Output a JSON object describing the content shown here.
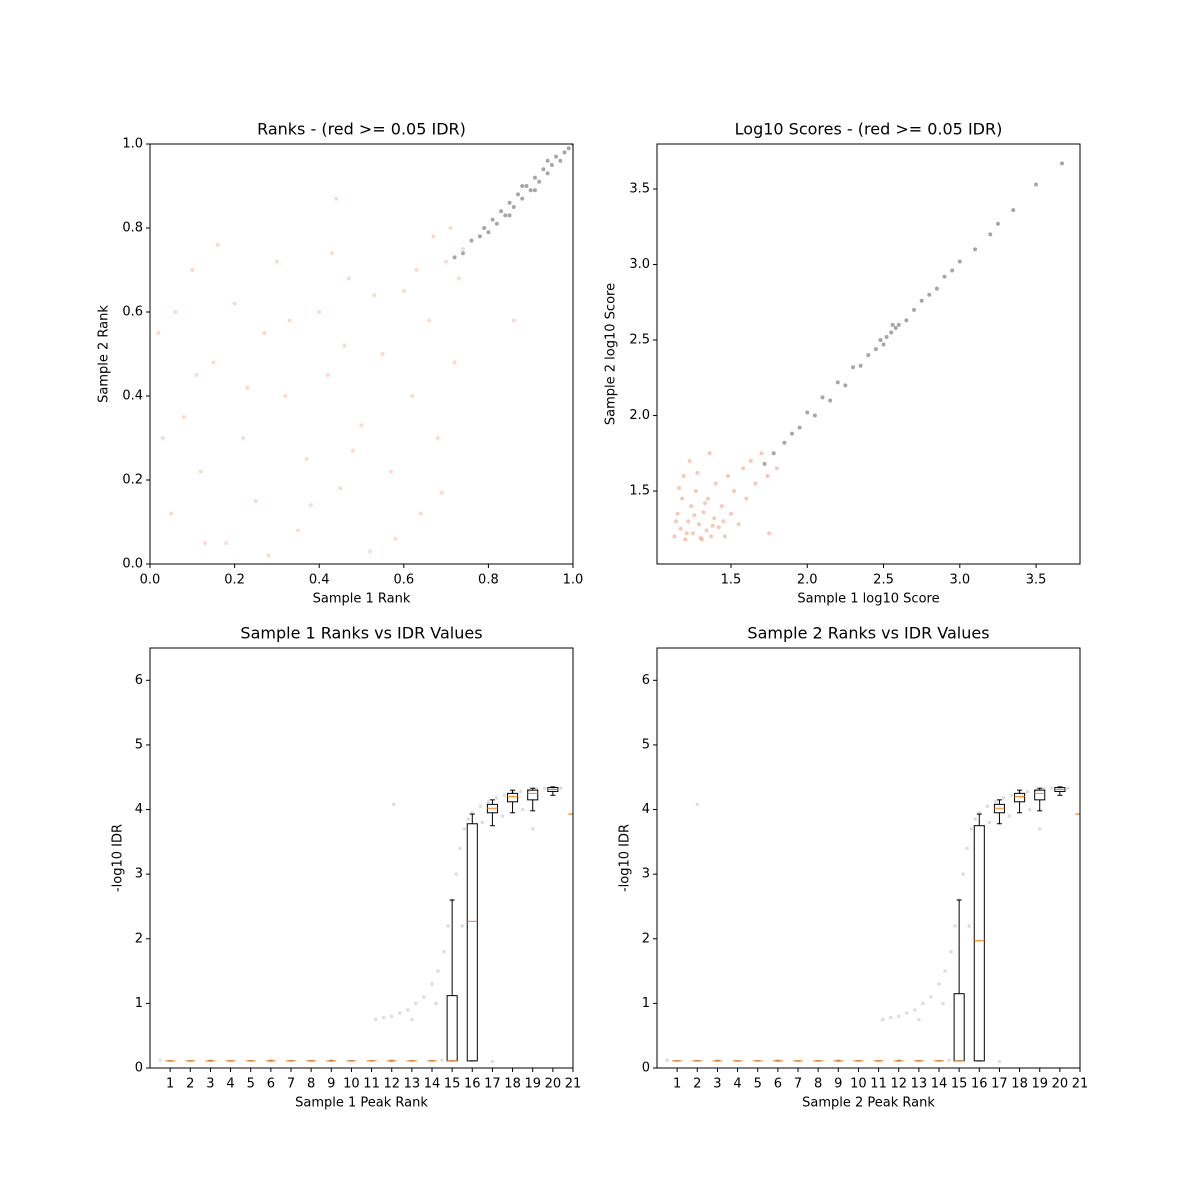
{
  "chart_data": [
    {
      "type": "scatter",
      "title": "Ranks - (red >= 0.05 IDR)",
      "xlabel": "Sample 1 Rank",
      "ylabel": "Sample 2 Rank",
      "xlim": [
        0,
        1
      ],
      "ylim": [
        0,
        1
      ],
      "xticks": [
        {
          "value": 0,
          "label": "0.0"
        },
        0.2,
        0.4,
        0.6,
        0.8,
        {
          "value": 1,
          "label": "1.0"
        }
      ],
      "yticks": [
        {
          "value": 0,
          "label": "0.0"
        },
        0.2,
        0.4,
        0.6,
        0.8,
        {
          "value": 1,
          "label": "1.0"
        }
      ],
      "series": [
        {
          "color": "#f4845f",
          "alpha": 0.3,
          "x": [
            0.02,
            0.05,
            0.08,
            0.1,
            0.12,
            0.15,
            0.18,
            0.2,
            0.22,
            0.25,
            0.27,
            0.3,
            0.32,
            0.35,
            0.37,
            0.4,
            0.42,
            0.45,
            0.47,
            0.5,
            0.52,
            0.55,
            0.57,
            0.6,
            0.62,
            0.64,
            0.66,
            0.68,
            0.7,
            0.72,
            0.74,
            0.03,
            0.06,
            0.13,
            0.16,
            0.23,
            0.28,
            0.33,
            0.38,
            0.43,
            0.48,
            0.53,
            0.58,
            0.63,
            0.67,
            0.71,
            0.73,
            0.69,
            0.11,
            0.46,
            0.86,
            0.44
          ],
          "y": [
            0.55,
            0.12,
            0.35,
            0.7,
            0.22,
            0.48,
            0.05,
            0.62,
            0.3,
            0.15,
            0.55,
            0.72,
            0.4,
            0.08,
            0.25,
            0.6,
            0.45,
            0.18,
            0.68,
            0.33,
            0.03,
            0.5,
            0.22,
            0.65,
            0.4,
            0.12,
            0.58,
            0.3,
            0.72,
            0.48,
            0.75,
            0.3,
            0.6,
            0.05,
            0.76,
            0.42,
            0.02,
            0.58,
            0.14,
            0.74,
            0.27,
            0.64,
            0.06,
            0.7,
            0.78,
            0.8,
            0.68,
            0.17,
            0.45,
            0.52,
            0.58,
            0.87
          ]
        },
        {
          "color": "#000000",
          "alpha": 0.35,
          "x": [
            0.72,
            0.74,
            0.76,
            0.78,
            0.79,
            0.8,
            0.81,
            0.82,
            0.83,
            0.84,
            0.85,
            0.86,
            0.87,
            0.88,
            0.89,
            0.9,
            0.91,
            0.92,
            0.93,
            0.94,
            0.95,
            0.96,
            0.97,
            0.98,
            0.99,
            1.0,
            0.85,
            0.88,
            0.91,
            0.94
          ],
          "y": [
            0.73,
            0.74,
            0.77,
            0.78,
            0.8,
            0.79,
            0.82,
            0.81,
            0.84,
            0.83,
            0.86,
            0.85,
            0.88,
            0.87,
            0.9,
            0.89,
            0.92,
            0.91,
            0.94,
            0.93,
            0.95,
            0.97,
            0.96,
            0.98,
            0.99,
            1.0,
            0.83,
            0.9,
            0.89,
            0.96
          ]
        }
      ]
    },
    {
      "type": "scatter",
      "title": "Log10 Scores - (red >= 0.05 IDR)",
      "xlabel": "Sample 1 log10 Score",
      "ylabel": "Sample 2 log10 Score",
      "xlim": [
        1.015,
        3.788
      ],
      "ylim": [
        1.017,
        3.798
      ],
      "xticks": [
        1.5,
        {
          "value": 2,
          "label": "2.0"
        },
        2.5,
        {
          "value": 3,
          "label": "3.0"
        },
        3.5
      ],
      "yticks": [
        1.5,
        {
          "value": 2,
          "label": "2.0"
        },
        2.5,
        {
          "value": 3,
          "label": "3.0"
        },
        3.5
      ],
      "series": [
        {
          "color": "#f4845f",
          "alpha": 0.45,
          "x": [
            1.13,
            1.15,
            1.17,
            1.18,
            1.2,
            1.22,
            1.24,
            1.25,
            1.27,
            1.29,
            1.3,
            1.32,
            1.34,
            1.35,
            1.37,
            1.39,
            1.4,
            1.42,
            1.44,
            1.46,
            1.48,
            1.5,
            1.52,
            1.55,
            1.58,
            1.6,
            1.63,
            1.66,
            1.7,
            1.74,
            1.19,
            1.23,
            1.16,
            1.36,
            1.45,
            1.8,
            1.75,
            1.14,
            1.21,
            1.26,
            1.31,
            1.33,
            1.38,
            1.28
          ],
          "y": [
            1.2,
            1.35,
            1.25,
            1.45,
            1.18,
            1.3,
            1.4,
            1.22,
            1.5,
            1.28,
            1.19,
            1.36,
            1.24,
            1.45,
            1.2,
            1.32,
            1.55,
            1.26,
            1.4,
            1.2,
            1.6,
            1.35,
            1.5,
            1.28,
            1.65,
            1.45,
            1.7,
            1.55,
            1.75,
            1.6,
            1.6,
            1.7,
            1.52,
            1.75,
            1.3,
            1.65,
            1.22,
            1.3,
            1.22,
            1.34,
            1.18,
            1.42,
            1.27,
            1.62
          ]
        },
        {
          "color": "#000000",
          "alpha": 0.35,
          "x": [
            1.72,
            1.78,
            1.85,
            1.9,
            1.95,
            2.0,
            2.05,
            2.1,
            2.15,
            2.2,
            2.25,
            2.3,
            2.35,
            2.4,
            2.45,
            2.48,
            2.52,
            2.55,
            2.58,
            2.6,
            2.65,
            2.7,
            2.75,
            2.8,
            2.85,
            2.9,
            2.95,
            3.0,
            3.1,
            3.2,
            3.25,
            3.35,
            3.5,
            3.67,
            2.5,
            2.56
          ],
          "y": [
            1.68,
            1.75,
            1.82,
            1.88,
            1.92,
            2.02,
            2.0,
            2.12,
            2.1,
            2.22,
            2.2,
            2.32,
            2.33,
            2.4,
            2.44,
            2.5,
            2.52,
            2.55,
            2.58,
            2.6,
            2.63,
            2.7,
            2.76,
            2.8,
            2.84,
            2.92,
            2.96,
            3.02,
            3.1,
            3.2,
            3.27,
            3.36,
            3.53,
            3.67,
            2.47,
            2.6
          ]
        }
      ]
    },
    {
      "type": "box",
      "title": "Sample 1 Ranks vs IDR Values",
      "xlabel": "Sample 1 Peak Rank",
      "ylabel": "-log10 IDR",
      "xlim": [
        0,
        21
      ],
      "ylim": [
        0,
        6.5
      ],
      "xticks": [
        1,
        2,
        3,
        4,
        5,
        6,
        7,
        8,
        9,
        10,
        11,
        12,
        13,
        14,
        15,
        16,
        17,
        18,
        19,
        20,
        21
      ],
      "yticks": [
        0,
        1,
        2,
        3,
        4,
        5,
        6
      ],
      "boxes": {
        "whislo": [
          0.11,
          0.11,
          0.11,
          0.11,
          0.11,
          0.11,
          0.11,
          0.11,
          0.11,
          0.11,
          0.11,
          0.11,
          0.11,
          0.11,
          0.11,
          0.11,
          3.75,
          3.95,
          3.98,
          4.22,
          3.93
        ],
        "q1": [
          0.11,
          0.11,
          0.11,
          0.11,
          0.11,
          0.11,
          0.11,
          0.11,
          0.11,
          0.11,
          0.11,
          0.11,
          0.11,
          0.11,
          0.11,
          0.11,
          3.95,
          4.12,
          4.15,
          4.28,
          3.93
        ],
        "median": [
          0.11,
          0.11,
          0.11,
          0.11,
          0.11,
          0.11,
          0.11,
          0.11,
          0.11,
          0.11,
          0.11,
          0.11,
          0.11,
          0.11,
          0.11,
          2.27,
          4.02,
          4.2,
          4.25,
          4.31,
          3.93
        ],
        "q3": [
          0.11,
          0.11,
          0.11,
          0.11,
          0.11,
          0.11,
          0.11,
          0.11,
          0.11,
          0.11,
          0.11,
          0.11,
          0.11,
          0.11,
          1.12,
          3.78,
          4.08,
          4.25,
          4.3,
          4.34,
          3.93
        ],
        "whishi": [
          0.11,
          0.11,
          0.11,
          0.11,
          0.11,
          0.11,
          0.11,
          0.11,
          0.11,
          0.11,
          0.11,
          0.11,
          0.11,
          0.11,
          2.6,
          3.93,
          4.15,
          4.3,
          4.33,
          4.35,
          3.93
        ]
      },
      "points": {
        "color": "#808080",
        "alpha": 0.25,
        "x": [
          11.2,
          11.6,
          12,
          12.4,
          12.8,
          13.2,
          13.6,
          14,
          14.3,
          14.6,
          14.8,
          15,
          15.2,
          15.4,
          15.6,
          15.8,
          16,
          16.4,
          16.8,
          17.2,
          17.6,
          18,
          18.4,
          18.8,
          19.2,
          19.6,
          20,
          20.4,
          13,
          14.2,
          15.5,
          16.5,
          17.5,
          18.5,
          19,
          12.1,
          17,
          0.5,
          3,
          6,
          9,
          12,
          14.5
        ],
        "y": [
          0.75,
          0.78,
          0.8,
          0.85,
          0.9,
          1.0,
          1.1,
          1.3,
          1.5,
          1.8,
          2.2,
          2.6,
          3.0,
          3.4,
          3.7,
          3.85,
          3.95,
          4.05,
          4.12,
          4.18,
          4.22,
          4.26,
          4.28,
          4.3,
          4.32,
          4.33,
          4.34,
          4.33,
          0.75,
          1.0,
          2.2,
          3.8,
          3.9,
          4.0,
          3.7,
          4.08,
          0.1,
          0.12,
          0.12,
          0.12,
          0.12,
          0.12,
          0.12
        ]
      }
    },
    {
      "type": "box",
      "title": "Sample 2 Ranks vs IDR Values",
      "xlabel": "Sample 2 Peak Rank",
      "ylabel": "-log10 IDR",
      "xlim": [
        0,
        21
      ],
      "ylim": [
        0,
        6.5
      ],
      "xticks": [
        1,
        2,
        3,
        4,
        5,
        6,
        7,
        8,
        9,
        10,
        11,
        12,
        13,
        14,
        15,
        16,
        17,
        18,
        19,
        20,
        21
      ],
      "yticks": [
        0,
        1,
        2,
        3,
        4,
        5,
        6
      ],
      "boxes": {
        "whislo": [
          0.11,
          0.11,
          0.11,
          0.11,
          0.11,
          0.11,
          0.11,
          0.11,
          0.11,
          0.11,
          0.11,
          0.11,
          0.11,
          0.11,
          0.11,
          0.11,
          3.78,
          3.95,
          3.98,
          4.22,
          3.93
        ],
        "q1": [
          0.11,
          0.11,
          0.11,
          0.11,
          0.11,
          0.11,
          0.11,
          0.11,
          0.11,
          0.11,
          0.11,
          0.11,
          0.11,
          0.11,
          0.11,
          0.11,
          3.95,
          4.12,
          4.15,
          4.28,
          3.93
        ],
        "median": [
          0.11,
          0.11,
          0.11,
          0.11,
          0.11,
          0.11,
          0.11,
          0.11,
          0.11,
          0.11,
          0.11,
          0.11,
          0.11,
          0.11,
          0.11,
          1.97,
          4.02,
          4.2,
          4.25,
          4.31,
          3.93
        ],
        "q3": [
          0.11,
          0.11,
          0.11,
          0.11,
          0.11,
          0.11,
          0.11,
          0.11,
          0.11,
          0.11,
          0.11,
          0.11,
          0.11,
          0.11,
          1.15,
          3.75,
          4.08,
          4.25,
          4.3,
          4.34,
          3.93
        ],
        "whishi": [
          0.11,
          0.11,
          0.11,
          0.11,
          0.11,
          0.11,
          0.11,
          0.11,
          0.11,
          0.11,
          0.11,
          0.11,
          0.11,
          0.11,
          2.6,
          3.93,
          4.15,
          4.3,
          4.33,
          4.35,
          3.93
        ]
      },
      "points": {
        "color": "#808080",
        "alpha": 0.25,
        "x": [
          11.2,
          11.6,
          12,
          12.4,
          12.8,
          13.2,
          13.6,
          14,
          14.3,
          14.6,
          14.8,
          15,
          15.2,
          15.4,
          15.6,
          15.8,
          16,
          16.4,
          16.8,
          17.2,
          17.6,
          18,
          18.4,
          18.8,
          19.2,
          19.6,
          20,
          20.4,
          13,
          14.2,
          15.5,
          16.5,
          17.5,
          18.5,
          19,
          2,
          17,
          0.5,
          3,
          6,
          9,
          12,
          14.5
        ],
        "y": [
          0.75,
          0.78,
          0.8,
          0.85,
          0.9,
          1.0,
          1.1,
          1.3,
          1.5,
          1.8,
          2.2,
          2.6,
          3.0,
          3.4,
          3.7,
          3.85,
          3.95,
          4.05,
          4.12,
          4.18,
          4.22,
          4.26,
          4.28,
          4.3,
          4.32,
          4.33,
          4.34,
          4.33,
          0.75,
          1.0,
          2.2,
          3.8,
          3.9,
          4.0,
          3.7,
          4.08,
          0.1,
          0.12,
          0.12,
          0.12,
          0.12,
          0.12,
          0.12
        ]
      }
    }
  ]
}
